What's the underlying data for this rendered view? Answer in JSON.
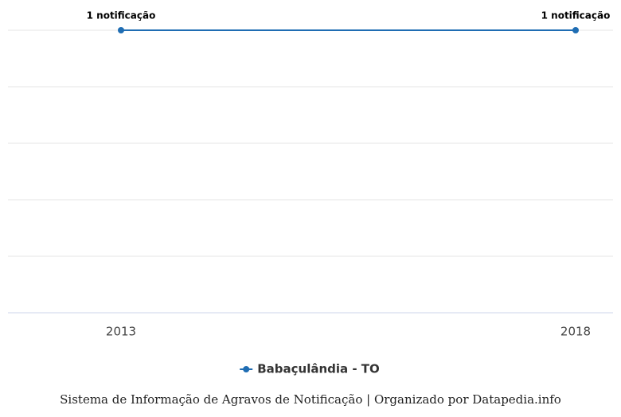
{
  "chart_data": {
    "type": "line",
    "x": [
      2013,
      2018
    ],
    "series": [
      {
        "name": "Babaçulândia - TO",
        "color": "#1f6db3",
        "values": [
          1,
          1
        ],
        "value_labels": [
          "1 notificação",
          "1 notificação"
        ]
      }
    ],
    "xlim": [
      2013,
      2018
    ],
    "xticks": [
      2013,
      2018
    ],
    "ylim": [
      0,
      1
    ],
    "yticks": [
      0,
      0.2,
      0.4,
      0.6,
      0.8,
      1
    ],
    "grid": true,
    "legend": "bottom",
    "source": "Sistema de Informação de Agravos de Notificação | Organizado por Datapedia.info"
  }
}
